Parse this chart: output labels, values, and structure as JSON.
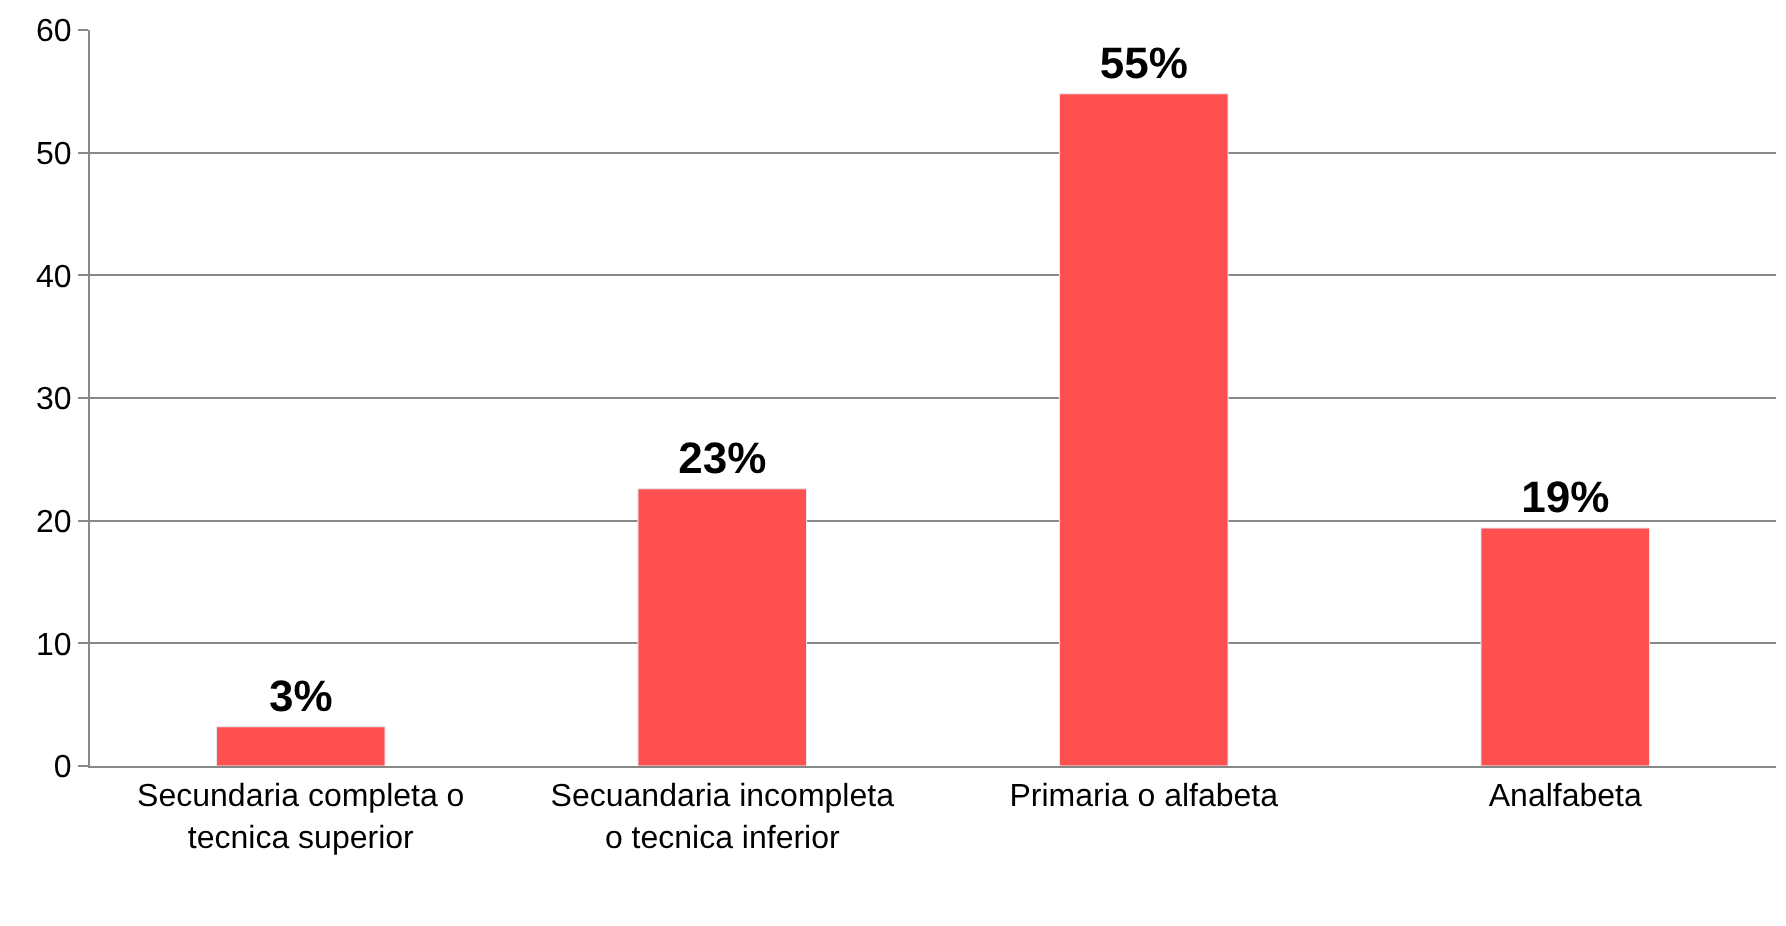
{
  "chart_data": {
    "type": "bar",
    "categories": [
      "Secundaria completa o tecnica superior",
      "Secuandaria incompleta o tecnica inferior",
      "Primaria o alfabeta",
      "Analfabeta"
    ],
    "values": [
      3.2,
      22.6,
      54.8,
      19.4
    ],
    "value_labels": [
      "3%",
      "23%",
      "55%",
      "19%"
    ],
    "color": "#ff5050",
    "ylim": [
      0,
      60
    ],
    "yticks": [
      0,
      10,
      20,
      30,
      40,
      50,
      60
    ],
    "grid": "y",
    "legend": false
  }
}
